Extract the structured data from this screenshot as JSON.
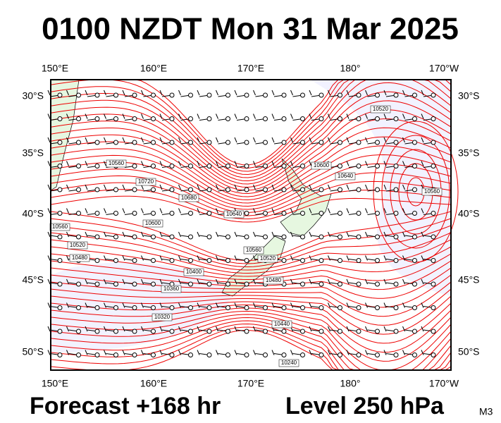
{
  "header": {
    "title": "0100 NZDT Mon 31 Mar 2025"
  },
  "map": {
    "lon_labels_top": [
      "150°E",
      "160°E",
      "170°E",
      "180°",
      "170°W"
    ],
    "lon_labels_bottom": [
      "150°E",
      "160°E",
      "170°E",
      "180°",
      "170°W"
    ],
    "lat_labels_left": [
      "30°S",
      "35°S",
      "40°S",
      "45°S",
      "50°S"
    ],
    "lat_labels_right": [
      "30°S",
      "35°S",
      "40°S",
      "45°S",
      "50°S"
    ],
    "contour_labels": [
      "10520",
      "10600",
      "10640",
      "10560",
      "10560",
      "10720",
      "10680",
      "10600",
      "10640",
      "10560",
      "10520",
      "10480",
      "10560",
      "10520",
      "10400",
      "10360",
      "10320",
      "10480",
      "10440",
      "10240"
    ]
  },
  "footer": {
    "forecast": "Forecast +168 hr",
    "level": "Level 250 hPa",
    "model": "M3"
  }
}
